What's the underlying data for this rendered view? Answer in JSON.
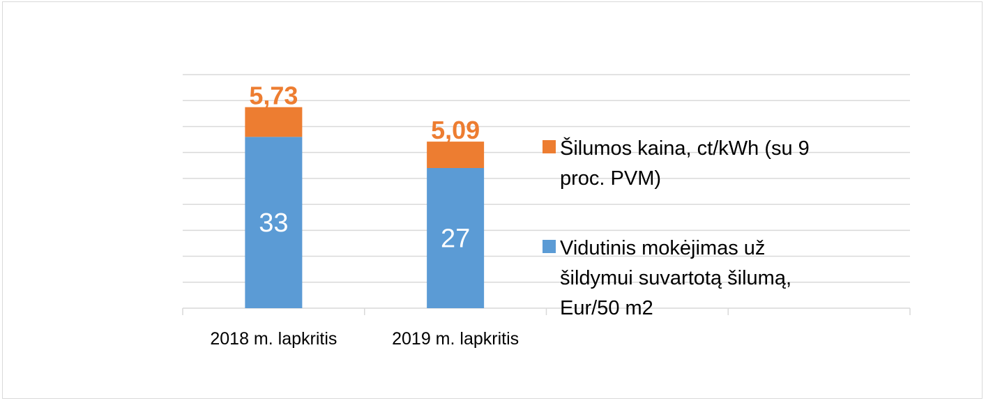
{
  "chart_data": {
    "type": "bar",
    "stacked": true,
    "categories": [
      "2018 m. lapkritis",
      "2019 m. lapkritis"
    ],
    "series": [
      {
        "name": "Vidutinis mokėjimas už šildymui suvartotą šilumą, Eur/50 m2",
        "legend_lines": [
          "Vidutinis mokėjimas už",
          "šildymui suvartotą šilumą,",
          "Eur/50 m2"
        ],
        "values": [
          33,
          27
        ],
        "labels": [
          "33",
          "27"
        ],
        "color": "#5b9bd5"
      },
      {
        "name": "Šilumos kaina, ct/kWh (su 9 proc. PVM)",
        "legend_lines": [
          "Šilumos kaina, ct/kWh (su 9",
          "proc. PVM)"
        ],
        "values": [
          5.73,
          5.09
        ],
        "labels": [
          "5,73",
          "5,09"
        ],
        "color": "#ed7d31"
      }
    ],
    "ylim": [
      0,
      45
    ],
    "y_axis_visible": false,
    "grid": true,
    "legend_position": "right",
    "colors": {
      "grid": "#d9d9d9",
      "axis": "#d9d9d9"
    }
  }
}
